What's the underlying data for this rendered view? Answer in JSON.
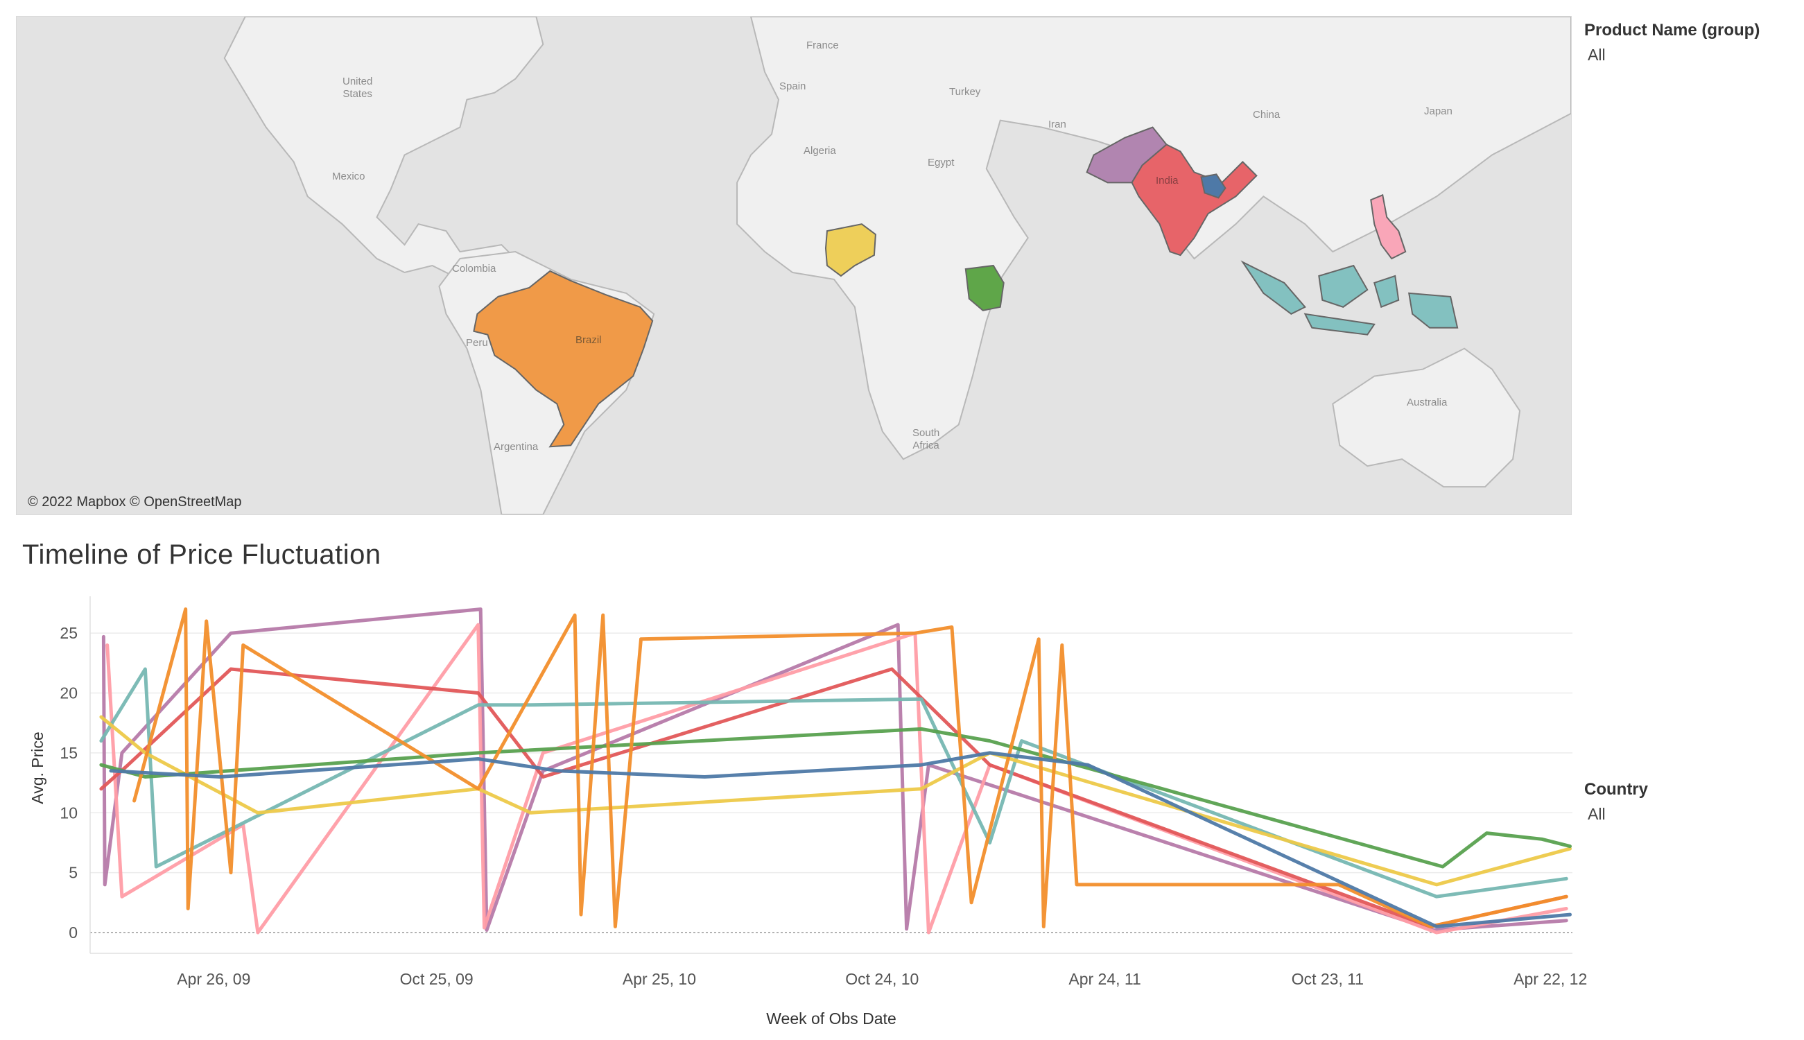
{
  "map": {
    "attribution": "© 2022 Mapbox © OpenStreetMap",
    "labels": [
      {
        "key": "us",
        "text": "United\nStates"
      },
      {
        "key": "mexico",
        "text": "Mexico"
      },
      {
        "key": "colombia",
        "text": "Colombia"
      },
      {
        "key": "peru",
        "text": "Peru"
      },
      {
        "key": "brazil",
        "text": "Brazil"
      },
      {
        "key": "argentina",
        "text": "Argentina"
      },
      {
        "key": "france",
        "text": "France"
      },
      {
        "key": "spain",
        "text": "Spain"
      },
      {
        "key": "turkey",
        "text": "Turkey"
      },
      {
        "key": "algeria",
        "text": "Algeria"
      },
      {
        "key": "egypt",
        "text": "Egypt"
      },
      {
        "key": "iran",
        "text": "Iran"
      },
      {
        "key": "china",
        "text": "China"
      },
      {
        "key": "japan",
        "text": "Japan"
      },
      {
        "key": "india",
        "text": "India"
      },
      {
        "key": "south_africa",
        "text": "South\nAfrica"
      },
      {
        "key": "australia",
        "text": "Australia"
      }
    ],
    "highlighted_countries": [
      {
        "name": "Brazil",
        "color": "#f09a48"
      },
      {
        "name": "Nigeria",
        "color": "#eecf5a"
      },
      {
        "name": "Kenya",
        "color": "#5fa649"
      },
      {
        "name": "Pakistan",
        "color": "#b185b0"
      },
      {
        "name": "India",
        "color": "#e76469"
      },
      {
        "name": "Bangladesh",
        "color": "#4e79a7"
      },
      {
        "name": "Philippines",
        "color": "#f9a6b8"
      },
      {
        "name": "Indonesia",
        "color": "#83c1c0"
      }
    ]
  },
  "filters": {
    "product": {
      "title": "Product Name (group)",
      "value": "All"
    },
    "country": {
      "title": "Country",
      "value": "All"
    }
  },
  "timeline": {
    "title": "Timeline of Price Fluctuation"
  },
  "chart_data": {
    "type": "line",
    "title": "Timeline of Price Fluctuation",
    "xlabel": "Week of Obs Date",
    "ylabel": "Avg. Price",
    "x_ticks": [
      "Apr 26, 09",
      "Oct 25, 09",
      "Apr 25, 10",
      "Oct 24, 10",
      "Apr 24, 11",
      "Oct 23, 11",
      "Apr 22, 12"
    ],
    "y_ticks": [
      0,
      5,
      10,
      15,
      20,
      25
    ],
    "ylim": [
      0,
      27.5
    ],
    "xlim": [
      "2009-01-15",
      "2012-05-10"
    ],
    "grid": true,
    "series": [
      {
        "color": "#b67aa9",
        "values": [
          [
            "2009-01-26",
            24.7
          ],
          [
            "2009-01-27",
            4.0
          ],
          [
            "2009-02-10",
            15.0
          ],
          [
            "2009-05-10",
            25.0
          ],
          [
            "2009-11-30",
            27.0
          ],
          [
            "2009-12-05",
            0.2
          ],
          [
            "2010-01-20",
            13.5
          ],
          [
            "2010-11-06",
            25.7
          ],
          [
            "2010-11-13",
            0.3
          ],
          [
            "2010-12-01",
            14.0
          ],
          [
            "2012-01-18",
            0.2
          ],
          [
            "2012-05-05",
            1.0
          ]
        ]
      },
      {
        "color": "#ff9da7",
        "values": [
          [
            "2009-01-29",
            24.0
          ],
          [
            "2009-02-10",
            3.0
          ],
          [
            "2009-05-20",
            9.0
          ],
          [
            "2009-06-01",
            0.0
          ],
          [
            "2009-11-28",
            25.7
          ],
          [
            "2009-12-03",
            0.4
          ],
          [
            "2010-01-20",
            15.0
          ],
          [
            "2010-11-20",
            25.0
          ],
          [
            "2010-12-01",
            0.0
          ],
          [
            "2011-01-20",
            14.0
          ],
          [
            "2012-01-20",
            0.0
          ],
          [
            "2012-05-05",
            2.0
          ]
        ]
      },
      {
        "color": "#e15759",
        "values": [
          [
            "2009-01-24",
            12.0
          ],
          [
            "2009-02-15",
            14.0
          ],
          [
            "2009-05-10",
            22.0
          ],
          [
            "2009-11-28",
            20.0
          ],
          [
            "2010-01-20",
            13.0
          ],
          [
            "2010-11-01",
            22.0
          ],
          [
            "2011-01-20",
            14.0
          ],
          [
            "2012-01-15",
            0.5
          ],
          [
            "2012-05-05",
            3.0
          ]
        ]
      },
      {
        "color": "#76b7b2",
        "values": [
          [
            "2009-01-24",
            16.0
          ],
          [
            "2009-03-01",
            22.0
          ],
          [
            "2009-03-10",
            5.5
          ],
          [
            "2009-11-28",
            19.0
          ],
          [
            "2010-01-10",
            19.0
          ],
          [
            "2010-11-25",
            19.5
          ],
          [
            "2011-01-20",
            7.5
          ],
          [
            "2011-02-15",
            16.0
          ],
          [
            "2012-01-20",
            3.0
          ],
          [
            "2012-05-05",
            4.5
          ]
        ]
      },
      {
        "color": "#edc949",
        "values": [
          [
            "2009-01-24",
            18.0
          ],
          [
            "2009-03-01",
            15.0
          ],
          [
            "2009-06-01",
            10.0
          ],
          [
            "2009-11-28",
            12.0
          ],
          [
            "2010-01-10",
            10.0
          ],
          [
            "2010-11-25",
            12.0
          ],
          [
            "2011-01-20",
            15.0
          ],
          [
            "2012-01-20",
            4.0
          ],
          [
            "2012-05-08",
            7.0
          ]
        ]
      },
      {
        "color": "#59a14f",
        "values": [
          [
            "2009-01-24",
            14.0
          ],
          [
            "2009-03-01",
            13.0
          ],
          [
            "2009-11-28",
            15.0
          ],
          [
            "2010-11-25",
            17.0
          ],
          [
            "2011-01-20",
            16.0
          ],
          [
            "2012-01-25",
            5.5
          ],
          [
            "2012-03-01",
            8.3
          ],
          [
            "2012-04-15",
            7.8
          ],
          [
            "2012-05-08",
            7.2
          ]
        ]
      },
      {
        "color": "#f28e2b",
        "values": [
          [
            "2009-02-20",
            11.0
          ],
          [
            "2009-04-03",
            27.0
          ],
          [
            "2009-04-05",
            2.0
          ],
          [
            "2009-04-20",
            26.0
          ],
          [
            "2009-05-10",
            5.0
          ],
          [
            "2009-05-20",
            24.0
          ],
          [
            "2009-11-28",
            12.0
          ],
          [
            "2010-02-15",
            26.5
          ],
          [
            "2010-02-20",
            1.5
          ],
          [
            "2010-03-10",
            26.5
          ],
          [
            "2010-03-20",
            0.5
          ],
          [
            "2010-04-10",
            24.5
          ],
          [
            "2010-11-20",
            25.0
          ],
          [
            "2010-12-20",
            25.5
          ],
          [
            "2011-01-05",
            2.5
          ],
          [
            "2011-03-01",
            24.5
          ],
          [
            "2011-03-05",
            0.5
          ],
          [
            "2011-03-20",
            24.0
          ],
          [
            "2011-04-01",
            4.0
          ],
          [
            "2011-11-01",
            4.0
          ],
          [
            "2012-01-15",
            0.5
          ],
          [
            "2012-05-05",
            3.0
          ]
        ]
      },
      {
        "color": "#4e79a7",
        "values": [
          [
            "2009-02-01",
            13.5
          ],
          [
            "2009-05-01",
            13.0
          ],
          [
            "2009-11-28",
            14.5
          ],
          [
            "2010-02-01",
            13.5
          ],
          [
            "2010-06-01",
            13.0
          ],
          [
            "2010-11-25",
            14.0
          ],
          [
            "2011-01-20",
            15.0
          ],
          [
            "2011-04-10",
            14.0
          ],
          [
            "2012-01-20",
            0.5
          ],
          [
            "2012-05-08",
            1.5
          ]
        ]
      }
    ]
  }
}
